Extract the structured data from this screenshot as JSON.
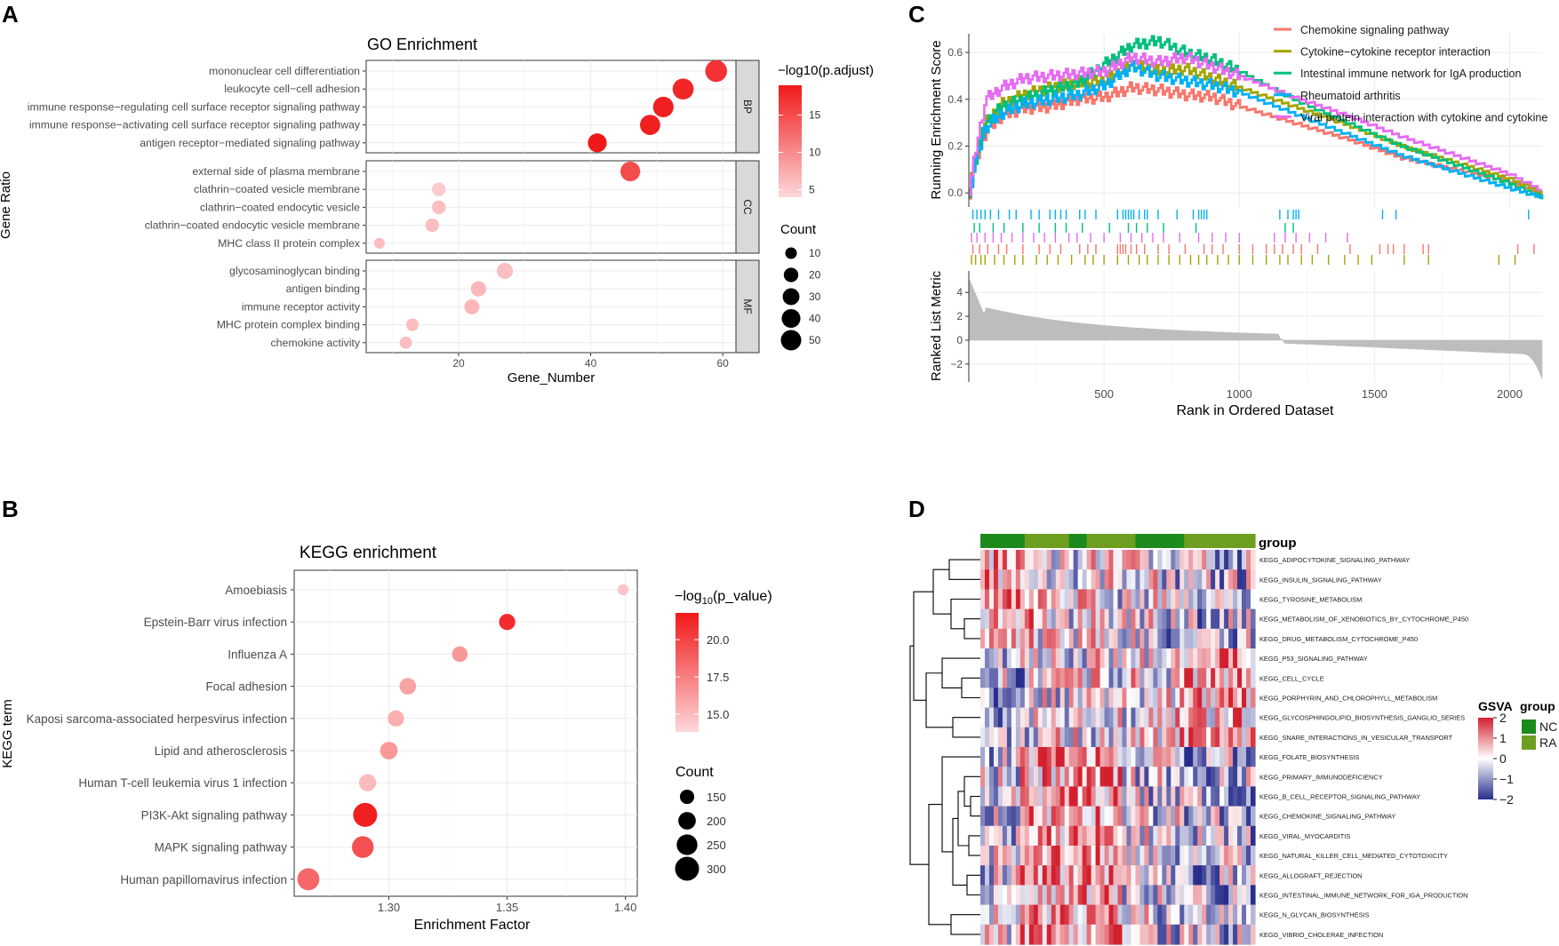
{
  "panel_letters": {
    "a": "A",
    "b": "B",
    "c": "C",
    "d": "D"
  },
  "chart_data": [
    {
      "panel": "A",
      "type": "scatter",
      "title": "GO Enrichment",
      "xlabel": "Gene_Number",
      "ylabel": "Gene Ratio",
      "xlim": [
        6,
        62
      ],
      "xticks": [
        20,
        40,
        60
      ],
      "color_legend_title": "−log10(p.adjust)",
      "color_ticks": [
        5,
        10,
        15
      ],
      "color_range": [
        4,
        19
      ],
      "size_legend_title": "Count",
      "size_ticks": [
        10,
        20,
        30,
        40,
        50
      ],
      "facets": [
        {
          "name": "BP",
          "terms": [
            {
              "term": "mononuclear cell differentiation",
              "count": 59,
              "score": 17
            },
            {
              "term": "leukocyte cell−cell adhesion",
              "count": 54,
              "score": 18
            },
            {
              "term": "immune response−regulating cell surface receptor signaling pathway",
              "count": 51,
              "score": 18.5
            },
            {
              "term": "immune response−activating cell surface receptor signaling pathway",
              "count": 49,
              "score": 18.5
            },
            {
              "term": "antigen receptor−mediated signaling pathway",
              "count": 41,
              "score": 19
            }
          ]
        },
        {
          "name": "CC",
          "terms": [
            {
              "term": "external side of plasma membrane",
              "count": 46,
              "score": 15
            },
            {
              "term": "clathrin−coated vesicle membrane",
              "count": 17,
              "score": 5
            },
            {
              "term": "clathrin−coated endocytic vesicle",
              "count": 17,
              "score": 6
            },
            {
              "term": "clathrin−coated endocytic vesicle membrane",
              "count": 16,
              "score": 6
            },
            {
              "term": "MHC class II protein complex",
              "count": 8,
              "score": 6
            }
          ]
        },
        {
          "name": "MF",
          "terms": [
            {
              "term": "glycosaminoglycan binding",
              "count": 27,
              "score": 6
            },
            {
              "term": "antigen binding",
              "count": 23,
              "score": 6.5
            },
            {
              "term": "immune receptor activity",
              "count": 22,
              "score": 6.5
            },
            {
              "term": "MHC protein complex binding",
              "count": 13,
              "score": 6
            },
            {
              "term": "chemokine activity",
              "count": 12,
              "score": 6
            }
          ]
        }
      ]
    },
    {
      "panel": "B",
      "type": "scatter",
      "title": "KEGG enrichment",
      "xlabel": "Enrichment Factor",
      "ylabel": "KEGG term",
      "xlim": [
        1.26,
        1.405
      ],
      "xticks": [
        1.3,
        1.35,
        1.4
      ],
      "xtick_labels": [
        "1.30",
        "1.35",
        "1.40"
      ],
      "color_legend_title_pre": "−log",
      "color_legend_title_sub": "10",
      "color_legend_title_post": "(p_value)",
      "color_ticks": [
        15.0,
        17.5,
        20.0
      ],
      "color_tick_labels": [
        "15.0",
        "17.5",
        "20.0"
      ],
      "color_range": [
        13.8,
        21.8
      ],
      "size_legend_title": "Count",
      "size_ticks": [
        150,
        200,
        250,
        300
      ],
      "terms": [
        {
          "term": "Amoebiasis",
          "factor": 1.399,
          "count": 100,
          "score": 14.5
        },
        {
          "term": "Epstein-Barr virus infection",
          "factor": 1.35,
          "count": 180,
          "score": 21
        },
        {
          "term": "Influenza A",
          "factor": 1.33,
          "count": 170,
          "score": 16.5
        },
        {
          "term": "Focal adhesion",
          "factor": 1.308,
          "count": 185,
          "score": 16
        },
        {
          "term": "Kaposi sarcoma-associated herpesvirus infection",
          "factor": 1.303,
          "count": 180,
          "score": 15.5
        },
        {
          "term": "Lipid and atherosclerosis",
          "factor": 1.3,
          "count": 200,
          "score": 16.5
        },
        {
          "term": "Human T-cell leukemia virus 1 infection",
          "factor": 1.291,
          "count": 195,
          "score": 15
        },
        {
          "term": "PI3K-Akt signaling pathway",
          "factor": 1.29,
          "count": 300,
          "score": 21.5
        },
        {
          "term": "MAPK signaling pathway",
          "factor": 1.289,
          "count": 265,
          "score": 19.5
        },
        {
          "term": "Human papillomavirus infection",
          "factor": 1.266,
          "count": 270,
          "score": 18.5
        }
      ]
    },
    {
      "panel": "C",
      "type": "line",
      "ylabel_top": "Running Enrichment Score",
      "ylabel_bottom": "Ranked List Metric",
      "xlabel": "Rank in Ordered Dataset",
      "xlim": [
        0,
        2120
      ],
      "xticks": [
        500,
        1000,
        1500,
        2000
      ],
      "es_ylim": [
        -0.06,
        0.68
      ],
      "es_yticks": [
        0.0,
        0.2,
        0.4,
        0.6
      ],
      "es_ytick_labels": [
        "0.0",
        "0.2",
        "0.4",
        "0.6"
      ],
      "metric_ylim": [
        -3.5,
        5.8
      ],
      "metric_yticks": [
        -2,
        0,
        2,
        4
      ],
      "metric_ytick_labels": [
        "−2",
        "0",
        "2",
        "4"
      ],
      "series": [
        {
          "name": "Chemokine signaling pathway",
          "color": "#F8766D",
          "x": [
            0,
            20,
            60,
            120,
            200,
            300,
            400,
            500,
            600,
            700,
            800,
            900,
            1000,
            1200,
            1400,
            1600,
            1800,
            2000,
            2120
          ],
          "y": [
            0.0,
            0.12,
            0.26,
            0.33,
            0.36,
            0.37,
            0.4,
            0.41,
            0.45,
            0.44,
            0.42,
            0.41,
            0.37,
            0.3,
            0.23,
            0.15,
            0.1,
            0.05,
            0.0
          ]
        },
        {
          "name": "Cytokine−cytokine receptor interaction",
          "color": "#A3A500",
          "x": [
            0,
            20,
            60,
            120,
            200,
            300,
            400,
            500,
            600,
            700,
            800,
            900,
            1000,
            1200,
            1400,
            1600,
            1800,
            2000,
            2120
          ],
          "y": [
            0.0,
            0.15,
            0.3,
            0.38,
            0.42,
            0.45,
            0.47,
            0.48,
            0.55,
            0.52,
            0.53,
            0.49,
            0.45,
            0.37,
            0.29,
            0.2,
            0.13,
            0.06,
            0.0
          ]
        },
        {
          "name": "Intestinal immune network for IgA production",
          "color": "#00BF7D",
          "x": [
            0,
            20,
            60,
            120,
            200,
            300,
            400,
            500,
            600,
            700,
            800,
            900,
            1000,
            1200,
            1400,
            1600,
            1800,
            2000,
            2120
          ],
          "y": [
            0.0,
            0.13,
            0.3,
            0.37,
            0.4,
            0.44,
            0.47,
            0.55,
            0.63,
            0.65,
            0.6,
            0.57,
            0.52,
            0.4,
            0.3,
            0.2,
            0.12,
            0.04,
            -0.02
          ]
        },
        {
          "name": "Rheumatoid arthritis",
          "color": "#00B0F6",
          "x": [
            0,
            20,
            60,
            120,
            200,
            300,
            400,
            500,
            600,
            700,
            800,
            900,
            1000,
            1200,
            1400,
            1600,
            1800,
            2000,
            2120
          ],
          "y": [
            0.0,
            0.12,
            0.28,
            0.34,
            0.38,
            0.4,
            0.42,
            0.46,
            0.54,
            0.5,
            0.48,
            0.46,
            0.43,
            0.34,
            0.25,
            0.16,
            0.09,
            0.02,
            -0.02
          ]
        },
        {
          "name": "Viral protein interaction with cytokine and cytokine",
          "color": "#E76BF3",
          "x": [
            0,
            20,
            60,
            120,
            200,
            300,
            400,
            500,
            600,
            700,
            800,
            900,
            1000,
            1200,
            1400,
            1600,
            1800,
            2000,
            2120
          ],
          "y": [
            0.0,
            0.16,
            0.4,
            0.45,
            0.49,
            0.5,
            0.51,
            0.52,
            0.58,
            0.56,
            0.58,
            0.54,
            0.5,
            0.41,
            0.33,
            0.24,
            0.16,
            0.08,
            0.01
          ]
        }
      ]
    },
    {
      "panel": "D",
      "type": "heatmap",
      "annotation_label": "group",
      "value_legend_title": "GSVA",
      "value_ticks": [
        2,
        1,
        0,
        -1,
        -2
      ],
      "value_tick_labels": [
        "2",
        "1",
        "0",
        "−1",
        "−2"
      ],
      "group_legend_title": "group",
      "groups": [
        {
          "name": "NC",
          "color": "#1D8A1D"
        },
        {
          "name": "RA",
          "color": "#6E9E1F"
        }
      ],
      "rows": [
        "KEGG_ADIPOCYTOKINE_SIGNALING_PATHWAY",
        "KEGG_INSULIN_SIGNALING_PATHWAY",
        "KEGG_TYROSINE_METABOLISM",
        "KEGG_METABOLISM_OF_XENOBIOTICS_BY_CYTOCHROME_P450",
        "KEGG_DRUG_METABOLISM_CYTOCHROME_P450",
        "KEGG_P53_SIGNALING_PATHWAY",
        "KEGG_CELL_CYCLE",
        "KEGG_PORPHYRIN_AND_CHLOROPHYLL_METABOLISM",
        "KEGG_GLYCOSPHINGOLIPID_BIOSYNTHESIS_GANGLIO_SERIES",
        "KEGG_SNARE_INTERACTIONS_IN_VESICULAR_TRANSPORT",
        "KEGG_FOLATE_BIOSYNTHESIS",
        "KEGG_PRIMARY_IMMUNODEFICIENCY",
        "KEGG_B_CELL_RECEPTOR_SIGNALING_PATHWAY",
        "KEGG_CHEMOKINE_SIGNALING_PATHWAY",
        "KEGG_VIRAL_MYOCARDITIS",
        "KEGG_NATURAL_KILLER_CELL_MEDIATED_CYTOTOXICITY",
        "KEGG_ALLOGRAFT_REJECTION",
        "KEGG_INTESTINAL_IMMUNE_NETWORK_FOR_IGA_PRODUCTION",
        "KEGG_N_GLYCAN_BIOSYNTHESIS",
        "KEGG_VIBRIO_CHOLERAE_INFECTION"
      ]
    }
  ]
}
